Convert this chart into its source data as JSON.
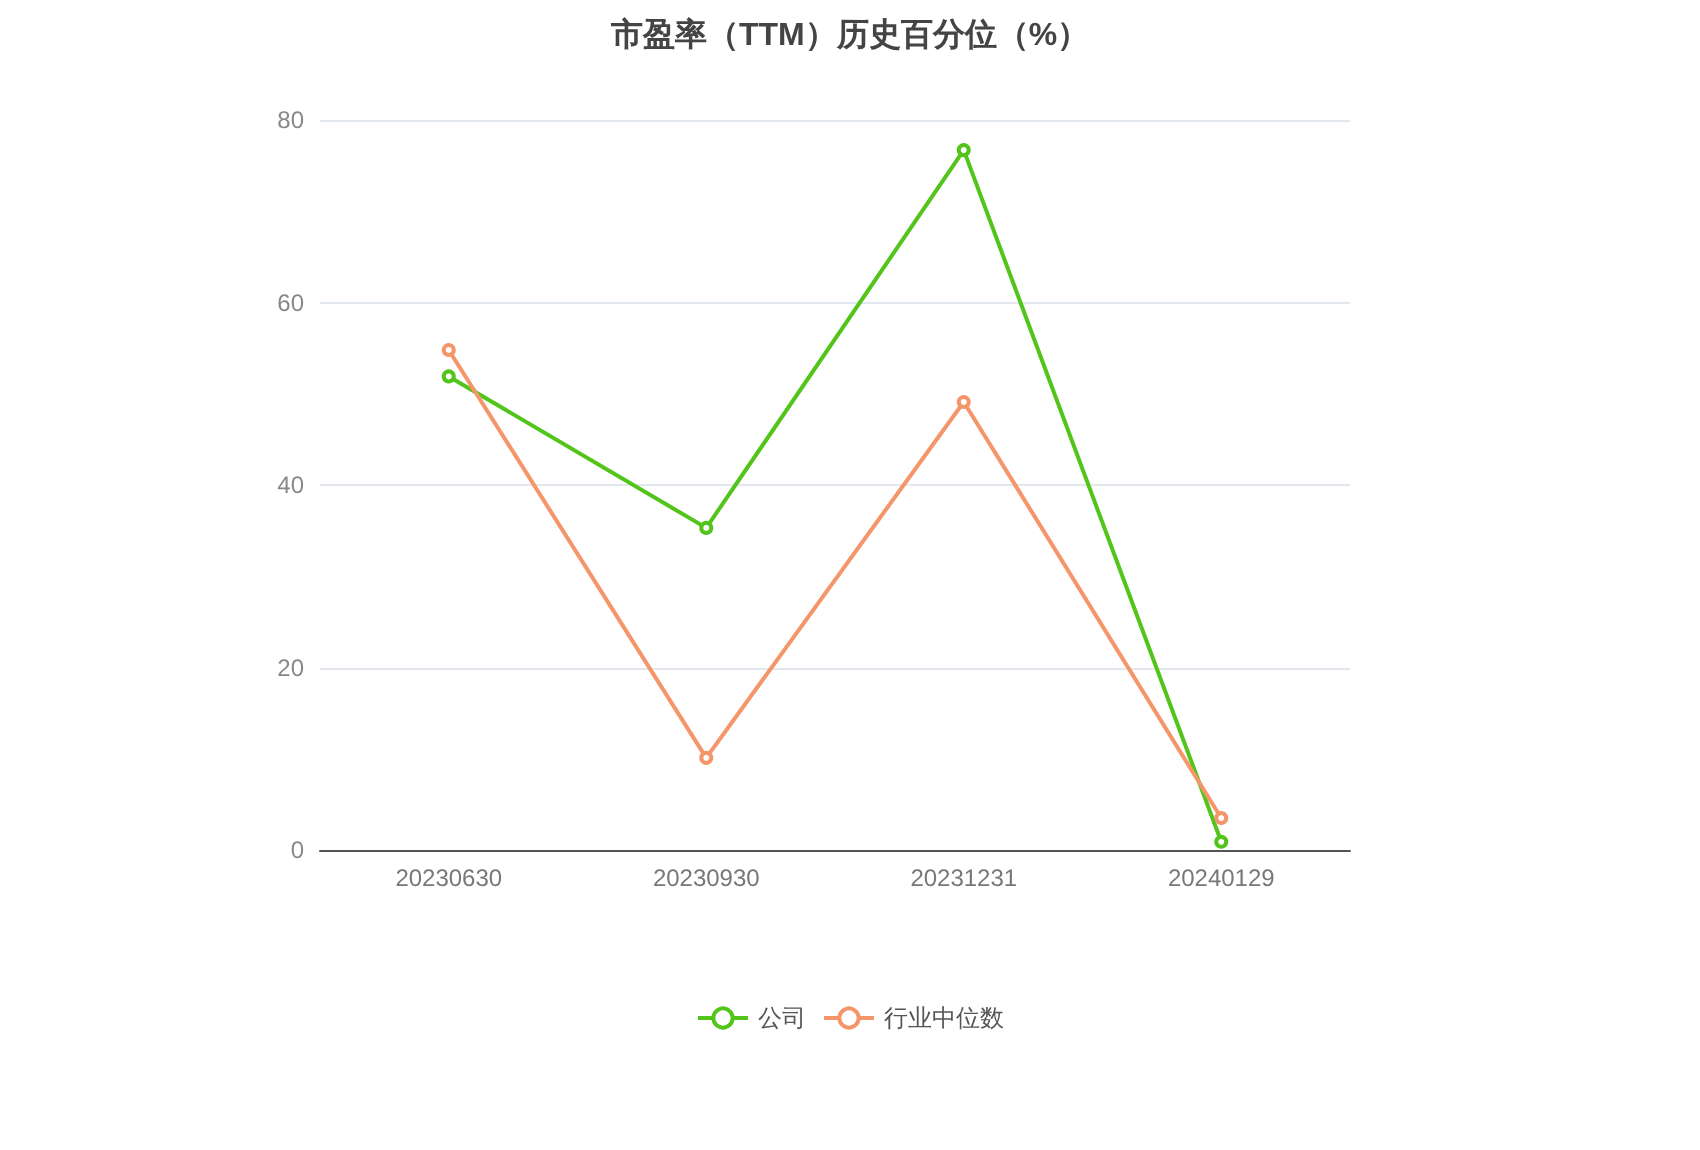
{
  "chart_data": {
    "type": "line",
    "title": "市盈率（TTM）历史百分位（%）",
    "categories": [
      "20230630",
      "20230930",
      "20231231",
      "20240129"
    ],
    "series": [
      {
        "name": "公司",
        "color": "#52c41a",
        "values": [
          51.9,
          35.3,
          76.7,
          0.9
        ]
      },
      {
        "name": "行业中位数",
        "color": "#f5956a",
        "values": [
          54.8,
          10.1,
          49.1,
          3.5
        ]
      }
    ],
    "ylim": [
      0,
      80
    ],
    "yticks": [
      0,
      20,
      40,
      60,
      80
    ],
    "grid": "y",
    "legend": "bottom",
    "marker": "circle",
    "line_style": "solid"
  }
}
